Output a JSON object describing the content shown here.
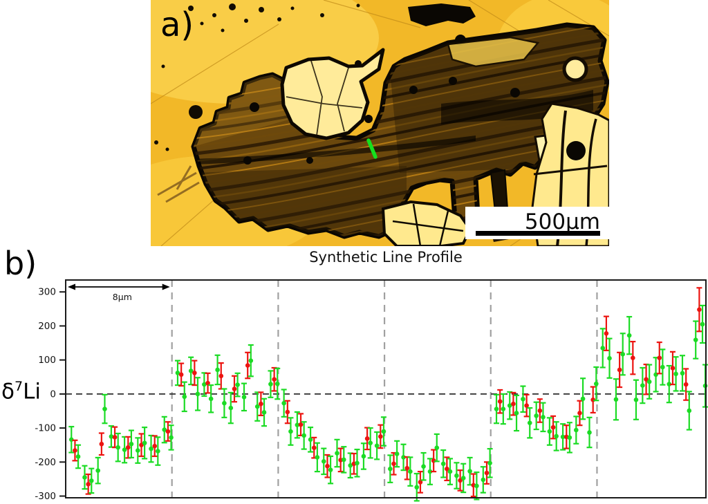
{
  "panels": {
    "a_label": "a)",
    "b_label": "b)"
  },
  "micrograph": {
    "scale_bar_label": "500μm",
    "marker_color": "#15e01e",
    "background_color": "#f2b828",
    "crystal_color": "#6b480d"
  },
  "chart_data": {
    "type": "scatter",
    "title": "Synthetic Line Profile",
    "ylabel": {
      "delta": "δ",
      "sup": "7",
      "element": "Li"
    },
    "xlabel": "",
    "grid": "vertical-dashed-segment-boundaries",
    "legend": "none",
    "ylim": [
      -305,
      335
    ],
    "yticks": [
      300,
      200,
      100,
      0,
      -100,
      -200,
      -300
    ],
    "xlim_um": [
      0,
      48.2
    ],
    "segment_boundaries_um": [
      8,
      16,
      24,
      32,
      40
    ],
    "zero_line_value": 0,
    "scale_annotation": {
      "label": "8μm",
      "from_um": 0,
      "to_um": 8
    },
    "series_colors": {
      "g": "#1bdb24",
      "r": "#ec1410"
    },
    "grid_color": "#a0a0a0",
    "points_format": [
      "x_um",
      "d7Li_value",
      "error",
      "series"
    ],
    "points": [
      [
        0.43,
        -134,
        38,
        "g"
      ],
      [
        0.7,
        -166,
        30,
        "r"
      ],
      [
        0.94,
        -184,
        34,
        "g"
      ],
      [
        1.43,
        -245,
        34,
        "g"
      ],
      [
        1.7,
        -265,
        29,
        "r"
      ],
      [
        1.94,
        -255,
        36,
        "g"
      ],
      [
        2.43,
        -225,
        38,
        "g"
      ],
      [
        2.7,
        -147,
        32,
        "r"
      ],
      [
        2.94,
        -44,
        42,
        "g"
      ],
      [
        3.43,
        -125,
        31,
        "g"
      ],
      [
        3.7,
        -127,
        30,
        "r"
      ],
      [
        3.94,
        -157,
        41,
        "g"
      ],
      [
        4.43,
        -164,
        38,
        "g"
      ],
      [
        4.7,
        -157,
        31,
        "r"
      ],
      [
        4.94,
        -147,
        40,
        "g"
      ],
      [
        5.43,
        -166,
        37,
        "g"
      ],
      [
        5.7,
        -150,
        33,
        "r"
      ],
      [
        5.94,
        -144,
        46,
        "g"
      ],
      [
        6.43,
        -161,
        39,
        "g"
      ],
      [
        6.7,
        -153,
        30,
        "r"
      ],
      [
        6.94,
        -168,
        41,
        "g"
      ],
      [
        7.43,
        -105,
        38,
        "g"
      ],
      [
        7.7,
        -110,
        28,
        "r"
      ],
      [
        7.94,
        -128,
        36,
        "g"
      ],
      [
        8.43,
        62,
        36,
        "g"
      ],
      [
        8.7,
        57,
        33,
        "r"
      ],
      [
        8.94,
        -8,
        43,
        "g"
      ],
      [
        9.43,
        68,
        40,
        "g"
      ],
      [
        9.7,
        62,
        36,
        "r"
      ],
      [
        9.94,
        0,
        48,
        "g"
      ],
      [
        10.43,
        28,
        34,
        "g"
      ],
      [
        10.7,
        32,
        29,
        "r"
      ],
      [
        10.94,
        -14,
        40,
        "g"
      ],
      [
        11.43,
        71,
        43,
        "g"
      ],
      [
        11.7,
        53,
        38,
        "r"
      ],
      [
        11.94,
        -27,
        42,
        "g"
      ],
      [
        12.43,
        -41,
        45,
        "g"
      ],
      [
        12.7,
        15,
        38,
        "r"
      ],
      [
        12.94,
        27,
        34,
        "g"
      ],
      [
        13.43,
        -9,
        40,
        "g"
      ],
      [
        13.7,
        84,
        38,
        "r"
      ],
      [
        13.94,
        98,
        46,
        "g"
      ],
      [
        14.43,
        -37,
        42,
        "g"
      ],
      [
        14.7,
        -29,
        34,
        "r"
      ],
      [
        14.94,
        -54,
        40,
        "g"
      ],
      [
        15.43,
        29,
        39,
        "g"
      ],
      [
        15.7,
        43,
        34,
        "r"
      ],
      [
        15.94,
        30,
        45,
        "g"
      ],
      [
        16.43,
        -27,
        40,
        "g"
      ],
      [
        16.7,
        -53,
        33,
        "r"
      ],
      [
        16.94,
        -110,
        40,
        "g"
      ],
      [
        17.43,
        -91,
        38,
        "g"
      ],
      [
        17.7,
        -90,
        32,
        "r"
      ],
      [
        17.94,
        -122,
        40,
        "g"
      ],
      [
        18.43,
        -134,
        36,
        "g"
      ],
      [
        18.7,
        -158,
        30,
        "r"
      ],
      [
        18.94,
        -186,
        42,
        "g"
      ],
      [
        19.43,
        -198,
        38,
        "g"
      ],
      [
        19.7,
        -212,
        33,
        "r"
      ],
      [
        19.94,
        -223,
        40,
        "g"
      ],
      [
        20.43,
        -174,
        40,
        "g"
      ],
      [
        20.7,
        -194,
        34,
        "r"
      ],
      [
        20.94,
        -193,
        38,
        "g"
      ],
      [
        21.43,
        -210,
        36,
        "g"
      ],
      [
        21.7,
        -205,
        30,
        "r"
      ],
      [
        21.94,
        -203,
        40,
        "g"
      ],
      [
        22.43,
        -183,
        38,
        "g"
      ],
      [
        22.7,
        -131,
        32,
        "r"
      ],
      [
        22.94,
        -144,
        44,
        "g"
      ],
      [
        23.43,
        -152,
        40,
        "g"
      ],
      [
        23.7,
        -125,
        34,
        "r"
      ],
      [
        23.94,
        -110,
        42,
        "g"
      ],
      [
        24.43,
        -220,
        40,
        "g"
      ],
      [
        24.7,
        -205,
        32,
        "r"
      ],
      [
        24.94,
        -176,
        38,
        "g"
      ],
      [
        25.43,
        -186,
        38,
        "g"
      ],
      [
        25.7,
        -218,
        33,
        "r"
      ],
      [
        25.94,
        -228,
        42,
        "g"
      ],
      [
        26.43,
        -274,
        40,
        "g"
      ],
      [
        26.7,
        -259,
        31,
        "r"
      ],
      [
        26.94,
        -213,
        40,
        "g"
      ],
      [
        27.43,
        -228,
        38,
        "g"
      ],
      [
        27.7,
        -196,
        32,
        "r"
      ],
      [
        27.94,
        -158,
        40,
        "g"
      ],
      [
        28.43,
        -205,
        40,
        "g"
      ],
      [
        28.7,
        -220,
        34,
        "r"
      ],
      [
        28.94,
        -228,
        38,
        "g"
      ],
      [
        29.43,
        -240,
        38,
        "g"
      ],
      [
        29.7,
        -254,
        30,
        "r"
      ],
      [
        29.94,
        -247,
        42,
        "g"
      ],
      [
        30.43,
        -227,
        40,
        "g"
      ],
      [
        30.7,
        -268,
        33,
        "r"
      ],
      [
        30.94,
        -270,
        40,
        "g"
      ],
      [
        31.43,
        -252,
        38,
        "g"
      ],
      [
        31.7,
        -232,
        32,
        "r"
      ],
      [
        31.94,
        -203,
        42,
        "g"
      ],
      [
        32.43,
        -44,
        42,
        "g"
      ],
      [
        32.7,
        -22,
        34,
        "r"
      ],
      [
        32.94,
        -44,
        44,
        "g"
      ],
      [
        33.43,
        -34,
        40,
        "g"
      ],
      [
        33.7,
        -29,
        33,
        "r"
      ],
      [
        33.94,
        -56,
        52,
        "g"
      ],
      [
        34.43,
        -15,
        38,
        "g"
      ],
      [
        34.7,
        -34,
        32,
        "r"
      ],
      [
        34.94,
        -85,
        44,
        "g"
      ],
      [
        35.43,
        -64,
        40,
        "g"
      ],
      [
        35.7,
        -49,
        34,
        "r"
      ],
      [
        35.94,
        -68,
        42,
        "g"
      ],
      [
        36.43,
        -110,
        40,
        "g"
      ],
      [
        36.7,
        -98,
        33,
        "r"
      ],
      [
        36.94,
        -124,
        42,
        "g"
      ],
      [
        37.43,
        -126,
        38,
        "g"
      ],
      [
        37.7,
        -126,
        34,
        "r"
      ],
      [
        37.94,
        -128,
        44,
        "g"
      ],
      [
        38.43,
        -106,
        40,
        "g"
      ],
      [
        38.7,
        -56,
        36,
        "r"
      ],
      [
        38.94,
        -14,
        60,
        "g"
      ],
      [
        39.43,
        -113,
        44,
        "g"
      ],
      [
        39.7,
        -17,
        38,
        "r"
      ],
      [
        39.94,
        30,
        49,
        "g"
      ],
      [
        40.43,
        135,
        57,
        "g"
      ],
      [
        40.7,
        178,
        50,
        "r"
      ],
      [
        40.94,
        105,
        58,
        "g"
      ],
      [
        41.43,
        -16,
        60,
        "g"
      ],
      [
        41.7,
        71,
        51,
        "r"
      ],
      [
        41.94,
        117,
        61,
        "g"
      ],
      [
        42.43,
        172,
        55,
        "g"
      ],
      [
        42.7,
        106,
        48,
        "r"
      ],
      [
        42.94,
        -17,
        58,
        "g"
      ],
      [
        43.43,
        25,
        52,
        "g"
      ],
      [
        43.7,
        43,
        44,
        "r"
      ],
      [
        43.94,
        36,
        50,
        "g"
      ],
      [
        44.43,
        57,
        50,
        "g"
      ],
      [
        44.7,
        106,
        46,
        "r"
      ],
      [
        44.94,
        79,
        52,
        "g"
      ],
      [
        45.43,
        29,
        54,
        "g"
      ],
      [
        45.7,
        76,
        48,
        "r"
      ],
      [
        45.94,
        59,
        50,
        "g"
      ],
      [
        46.43,
        61,
        52,
        "g"
      ],
      [
        46.7,
        28,
        46,
        "r"
      ],
      [
        46.94,
        -49,
        56,
        "g"
      ],
      [
        47.43,
        159,
        55,
        "g"
      ],
      [
        47.7,
        248,
        64,
        "r"
      ],
      [
        47.94,
        205,
        55,
        "g"
      ],
      [
        48.15,
        24,
        62,
        "g"
      ]
    ]
  }
}
